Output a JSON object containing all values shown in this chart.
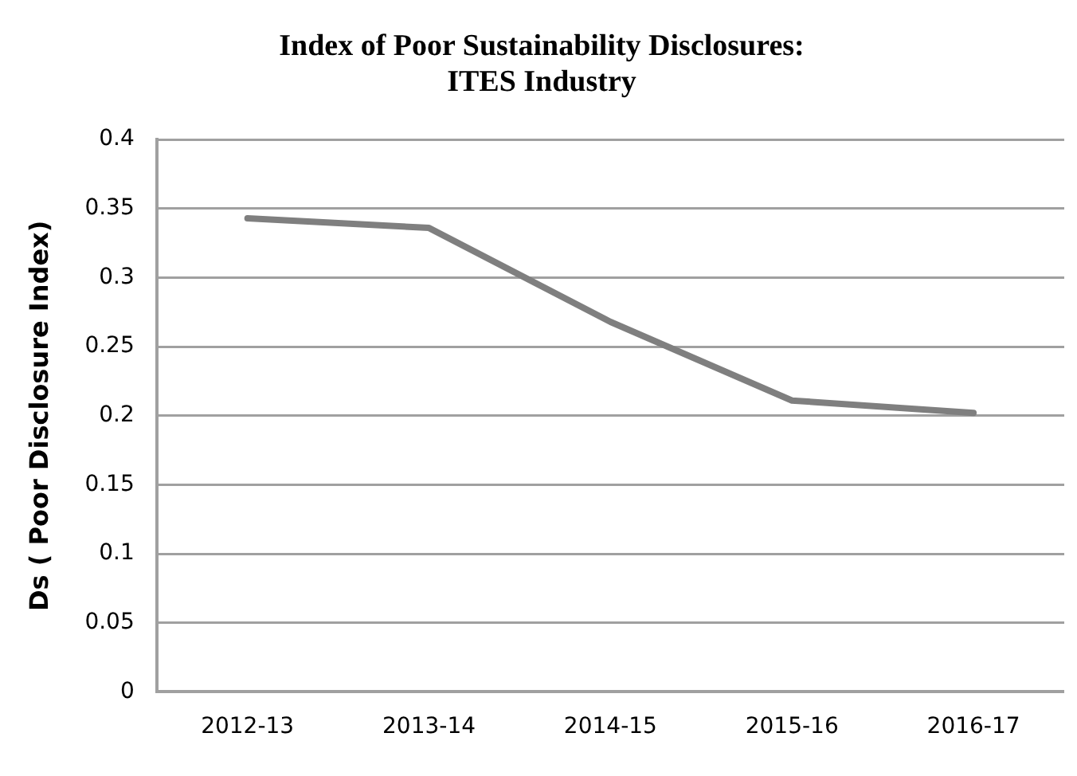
{
  "chart_data": {
    "type": "line",
    "title": [
      "Index of Poor Sustainability Disclosures:",
      "ITES Industry"
    ],
    "ylabel": "Ds ( Poor Disclosure Index)",
    "categories": [
      "2012-13",
      "2013-14",
      "2014-15",
      "2015-16",
      "2016-17"
    ],
    "series": [
      {
        "color": "#7f7f7f",
        "values": [
          0.343,
          0.336,
          0.268,
          0.211,
          0.202
        ]
      }
    ],
    "ylim": [
      0,
      0.4
    ],
    "yticks": [
      0,
      0.05,
      0.1,
      0.15,
      0.2,
      0.25,
      0.3,
      0.35,
      0.4
    ],
    "grid": "y",
    "legend": false,
    "marker": "none",
    "line_style": "solid"
  }
}
